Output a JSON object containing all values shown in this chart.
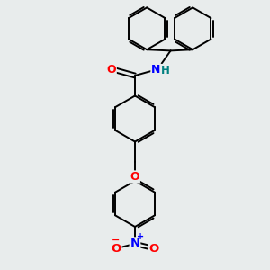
{
  "background_color": "#e8ecec",
  "bond_color": "#000000",
  "atom_colors": {
    "O": "#ff0000",
    "N": "#0000ff",
    "H": "#008080",
    "C": "#000000"
  },
  "figsize": [
    3.0,
    3.0
  ],
  "dpi": 100
}
